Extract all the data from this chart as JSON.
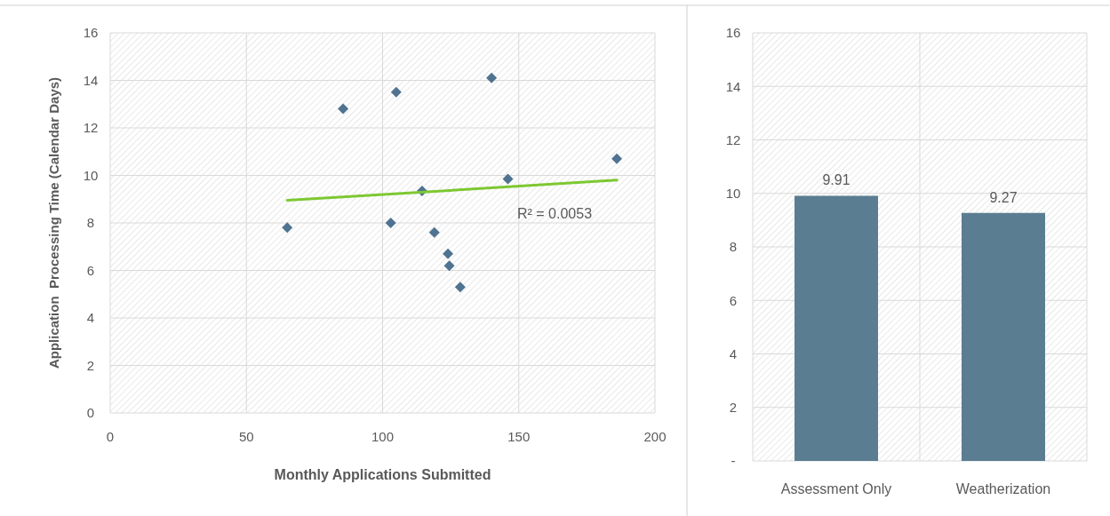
{
  "chart_data": [
    {
      "type": "scatter",
      "xlabel": "Monthly Applications Submitted",
      "ylabel": "Application  Processing Time (Calendar Days)",
      "xlim": [
        0,
        200
      ],
      "xticks": [
        0,
        50,
        100,
        150,
        200
      ],
      "ylim": [
        0,
        16
      ],
      "yticks": [
        0,
        2,
        4,
        6,
        8,
        10,
        12,
        14,
        16
      ],
      "grid": true,
      "series": [
        {
          "type": "scatter",
          "marker": "diamond",
          "color": "#4f7390",
          "x": [
            65,
            85.5,
            105,
            103,
            114.5,
            119,
            124,
            124.5,
            128.5,
            140,
            146,
            186
          ],
          "values": [
            7.8,
            12.8,
            13.5,
            8.0,
            9.35,
            7.6,
            6.7,
            6.2,
            5.3,
            14.1,
            9.85,
            10.7
          ]
        },
        {
          "type": "line",
          "marker": "none",
          "color": "#7dc832",
          "x": [
            65,
            186
          ],
          "values": [
            8.95,
            9.8
          ]
        }
      ],
      "annotations": [
        "R² = 0.0053"
      ]
    },
    {
      "type": "bar",
      "categories": [
        "Assessment Only",
        "Weatherization"
      ],
      "values": [
        9.91,
        9.27
      ],
      "color": "#5b7d91",
      "ylim": [
        0,
        16
      ],
      "yticks": [
        {
          "value": 0,
          "label": "-"
        },
        2,
        4,
        6,
        8,
        10,
        12,
        14,
        16
      ],
      "grid": true,
      "data_labels": true
    }
  ]
}
